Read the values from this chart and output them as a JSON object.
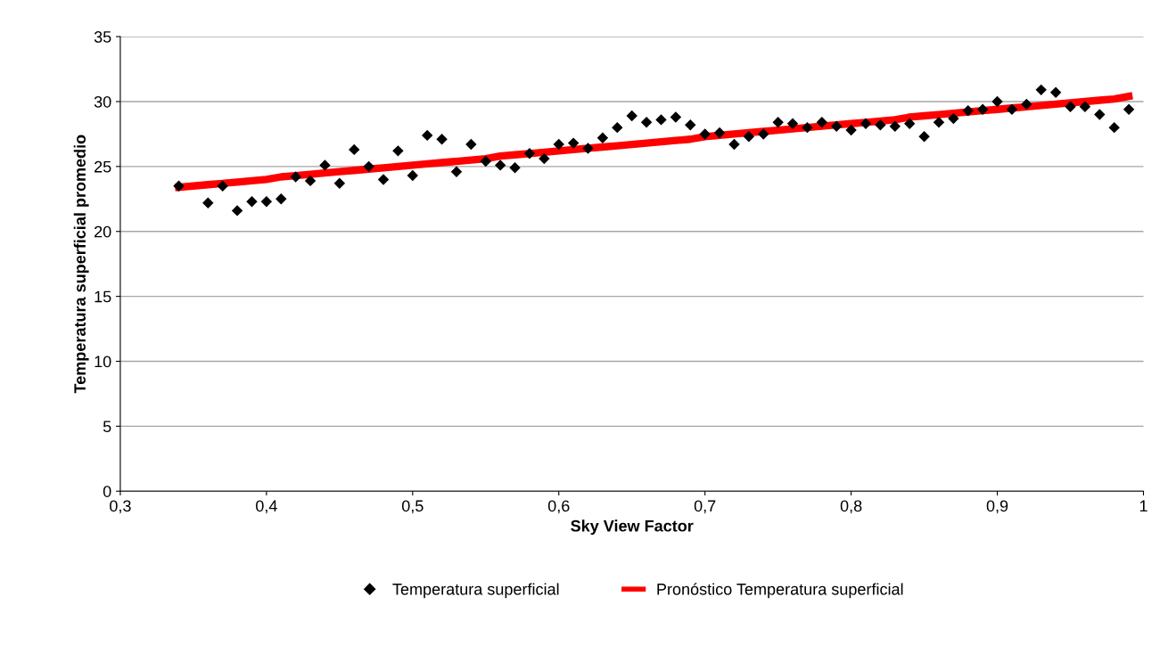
{
  "chart_data": {
    "type": "scatter",
    "xlabel": "Sky View Factor",
    "ylabel": "Temperatura superficial promedio",
    "xlim": [
      0.3,
      1
    ],
    "ylim": [
      0,
      35
    ],
    "xticks": [
      {
        "value": 0.3,
        "label": "0,3"
      },
      {
        "value": 0.4,
        "label": "0,4"
      },
      {
        "value": 0.5,
        "label": "0,5"
      },
      {
        "value": 0.6,
        "label": "0,6"
      },
      {
        "value": 0.7,
        "label": "0,7"
      },
      {
        "value": 0.8,
        "label": "0,8"
      },
      {
        "value": 0.9,
        "label": "0,9"
      },
      {
        "value": 1,
        "label": "1"
      }
    ],
    "yticks": [
      0,
      5,
      10,
      15,
      20,
      25,
      30,
      35
    ],
    "grid": "y",
    "legend": "bottom",
    "x": [
      0.34,
      0.36,
      0.37,
      0.38,
      0.39,
      0.4,
      0.41,
      0.42,
      0.43,
      0.44,
      0.45,
      0.46,
      0.47,
      0.48,
      0.49,
      0.5,
      0.51,
      0.52,
      0.53,
      0.54,
      0.55,
      0.56,
      0.57,
      0.58,
      0.59,
      0.6,
      0.61,
      0.62,
      0.63,
      0.64,
      0.65,
      0.66,
      0.67,
      0.68,
      0.69,
      0.7,
      0.71,
      0.72,
      0.73,
      0.74,
      0.75,
      0.76,
      0.77,
      0.78,
      0.79,
      0.8,
      0.81,
      0.82,
      0.83,
      0.84,
      0.85,
      0.86,
      0.87,
      0.88,
      0.89,
      0.9,
      0.91,
      0.92,
      0.93,
      0.94,
      0.95,
      0.96,
      0.97,
      0.98,
      0.99
    ],
    "series": [
      {
        "name": "Temperatura superficial",
        "marker": "diamond",
        "color": "#000000",
        "values": [
          23.5,
          22.2,
          23.5,
          21.6,
          22.3,
          22.3,
          22.5,
          24.2,
          23.9,
          25.1,
          23.7,
          26.3,
          25.0,
          24.0,
          26.2,
          24.3,
          27.4,
          27.1,
          24.6,
          26.7,
          25.4,
          25.1,
          24.9,
          26.0,
          25.6,
          26.7,
          26.8,
          26.4,
          27.2,
          28.0,
          28.9,
          28.4,
          28.6,
          28.8,
          28.2,
          27.5,
          27.6,
          26.7,
          27.3,
          27.5,
          28.4,
          28.3,
          28.0,
          28.4,
          28.1,
          27.8,
          28.3,
          28.2,
          28.1,
          28.3,
          27.3,
          28.4,
          28.7,
          29.3,
          29.4,
          30.0,
          29.4,
          29.8,
          30.9,
          30.7,
          29.6,
          29.6,
          29.0,
          28.0,
          29.4
        ]
      },
      {
        "name": "Pronóstico Temperatura superficial",
        "type": "line",
        "marker": "none",
        "color": "#ff0000",
        "values": [
          23.4,
          23.6,
          23.7,
          23.8,
          23.9,
          24.0,
          24.2,
          24.3,
          24.4,
          24.5,
          24.6,
          24.7,
          24.8,
          24.9,
          25.0,
          25.1,
          25.2,
          25.3,
          25.4,
          25.5,
          25.6,
          25.8,
          25.9,
          26.0,
          26.1,
          26.2,
          26.3,
          26.4,
          26.5,
          26.6,
          26.7,
          26.8,
          26.9,
          27.0,
          27.1,
          27.3,
          27.4,
          27.5,
          27.6,
          27.7,
          27.8,
          27.9,
          28.0,
          28.1,
          28.2,
          28.3,
          28.4,
          28.5,
          28.6,
          28.8,
          28.9,
          29.0,
          29.1,
          29.2,
          29.3,
          29.4,
          29.5,
          29.6,
          29.7,
          29.8,
          29.9,
          30.0,
          30.1,
          30.2,
          30.4
        ]
      }
    ]
  }
}
